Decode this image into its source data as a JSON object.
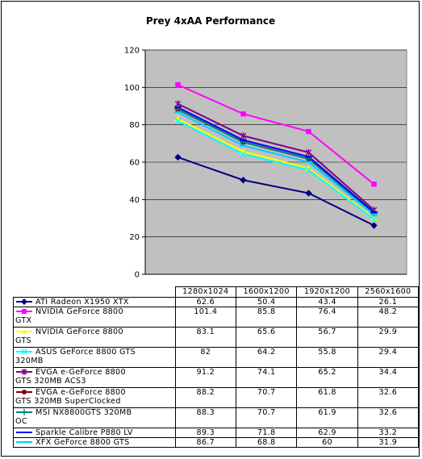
{
  "chart_data": {
    "type": "line",
    "title": "Prey 4xAA Performance",
    "categories": [
      "1280x1024",
      "1600x1200",
      "1920x1200",
      "2560x1600"
    ],
    "ylim": [
      0,
      120
    ],
    "yticks": [
      0,
      20,
      40,
      60,
      80,
      100,
      120
    ],
    "grid": true,
    "legend": "bottom-table",
    "series": [
      {
        "name": "ATI Radeon X1950 XTX",
        "color": "#000080",
        "marker": "diamond",
        "values": [
          62.6,
          50.4,
          43.4,
          26.1
        ]
      },
      {
        "name": "NVIDIA GeForce 8800 GTX",
        "color": "#ff00ff",
        "marker": "square",
        "values": [
          101.4,
          85.8,
          76.4,
          48.2
        ]
      },
      {
        "name": "NVIDIA GeForce 8800 GTS",
        "color": "#ffff00",
        "marker": "triangle",
        "values": [
          83.1,
          65.6,
          56.7,
          29.9
        ]
      },
      {
        "name": "ASUS GeForce 8800 GTS 320MB",
        "color": "#00ffff",
        "marker": "x",
        "values": [
          82,
          64.2,
          55.8,
          29.4
        ]
      },
      {
        "name": "EVGA e-GeForce 8800 GTS 320MB ACS3",
        "color": "#800080",
        "marker": "star",
        "values": [
          91.2,
          74.1,
          65.2,
          34.4
        ]
      },
      {
        "name": "EVGA e-GeForce 8800 GTS 320MB SuperClocked",
        "color": "#800000",
        "marker": "circle",
        "values": [
          88.2,
          70.7,
          61.8,
          32.6
        ]
      },
      {
        "name": "MSI NX8800GTS 320MB OC",
        "color": "#008080",
        "marker": "plus",
        "values": [
          88.3,
          70.7,
          61.9,
          32.6
        ]
      },
      {
        "name": "Sparkle Calibre P880 LV",
        "color": "#0000ff",
        "marker": "dash",
        "values": [
          89.3,
          71.8,
          62.9,
          33.2
        ]
      },
      {
        "name": "XFX GeForce 8800 GTS",
        "color": "#00ccff",
        "marker": "dash",
        "values": [
          86.7,
          68.8,
          60,
          31.9
        ]
      }
    ],
    "table_labels": [
      [
        "ATI Radeon X1950 XTX"
      ],
      [
        "NVIDIA GeForce 8800",
        "GTX"
      ],
      [
        "NVIDIA GeForce 8800",
        "GTS"
      ],
      [
        "ASUS GeForce 8800 GTS",
        "320MB"
      ],
      [
        "EVGA e-GeForce 8800",
        "GTS 320MB ACS3"
      ],
      [
        "EVGA e-GeForce 8800",
        "GTS 320MB SuperClocked"
      ],
      [
        "MSI NX8800GTS 320MB",
        "OC"
      ],
      [
        "Sparkle Calibre P880 LV"
      ],
      [
        "XFX GeForce 8800 GTS"
      ]
    ],
    "table_values": [
      [
        "62.6",
        "50.4",
        "43.4",
        "26.1"
      ],
      [
        "101.4",
        "85.8",
        "76.4",
        "48.2"
      ],
      [
        "83.1",
        "65.6",
        "56.7",
        "29.9"
      ],
      [
        "82",
        "64.2",
        "55.8",
        "29.4"
      ],
      [
        "91.2",
        "74.1",
        "65.2",
        "34.4"
      ],
      [
        "88.2",
        "70.7",
        "61.8",
        "32.6"
      ],
      [
        "88.3",
        "70.7",
        "61.9",
        "32.6"
      ],
      [
        "89.3",
        "71.8",
        "62.9",
        "33.2"
      ],
      [
        "86.7",
        "68.8",
        "60",
        "31.9"
      ]
    ]
  }
}
